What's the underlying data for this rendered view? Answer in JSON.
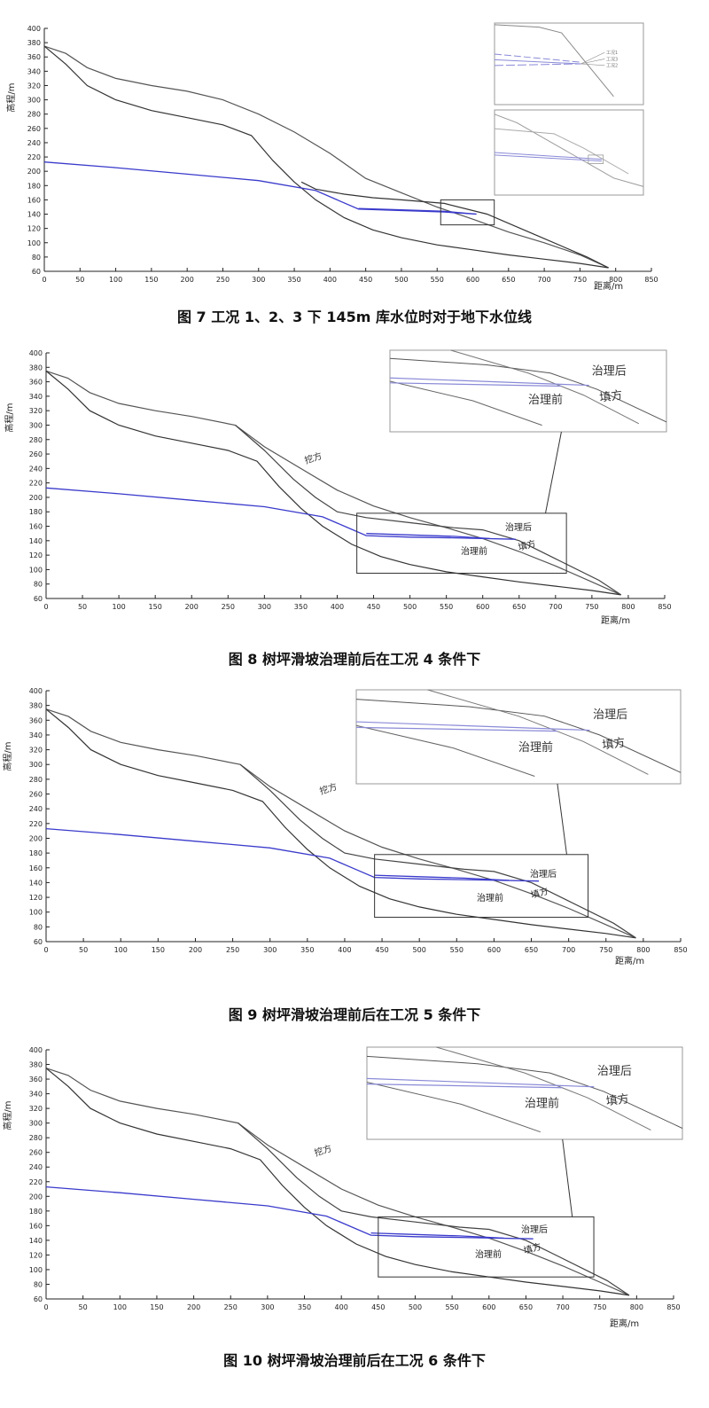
{
  "figures": [
    {
      "caption": "图 7  工况 1、2、3 下 145m 库水位时对于地下水位线",
      "ylabel": "高程/m",
      "xlabel": "距离/m",
      "annotations": {
        "fill": "",
        "after": "",
        "before": "",
        "excavation": ""
      },
      "inset_labels": {
        "after": "",
        "before": "",
        "fill": ""
      },
      "inset_legend": [
        "工况1",
        "工况3",
        "工况2"
      ]
    },
    {
      "caption": "图 8  树坪滑坡治理前后在工况 4 条件下",
      "ylabel": "高程/m",
      "xlabel": "距离/m",
      "annotations": {
        "fill": "填方",
        "after": "治理后",
        "before": "治理前",
        "excavation": "挖方"
      },
      "inset_labels": {
        "after": "治理后",
        "before": "治理前",
        "fill": "填方"
      },
      "inset_legend": []
    },
    {
      "caption": "图 9  树坪滑坡治理前后在工况 5 条件下",
      "ylabel": "高程/m",
      "xlabel": "距离/m",
      "annotations": {
        "fill": "填方",
        "after": "治理后",
        "before": "治理前",
        "excavation": "挖方"
      },
      "inset_labels": {
        "after": "治理后",
        "before": "治理前",
        "fill": "填方"
      },
      "inset_legend": []
    },
    {
      "caption": "图 10  树坪滑坡治理前后在工况 6 条件下",
      "ylabel": "高程/m",
      "xlabel": "距离/m",
      "annotations": {
        "fill": "填方",
        "after": "治理后",
        "before": "治理前",
        "excavation": "挖方"
      },
      "inset_labels": {
        "after": "治理后",
        "before": "治理前",
        "fill": "填方"
      },
      "inset_legend": []
    }
  ],
  "chart_data": [
    {
      "type": "line",
      "title": "图 7  工况 1、2、3 下 145m 库水位时对于地下水位线",
      "xlabel": "距离/m",
      "ylabel": "高程/m",
      "xlim": [
        0,
        850
      ],
      "ylim": [
        60,
        400
      ],
      "xticks": [
        0,
        50,
        100,
        150,
        200,
        250,
        300,
        350,
        400,
        450,
        500,
        550,
        600,
        650,
        700,
        750,
        800,
        850
      ],
      "yticks": [
        60,
        80,
        100,
        120,
        140,
        160,
        180,
        200,
        220,
        240,
        260,
        280,
        300,
        320,
        340,
        360,
        380,
        400
      ],
      "grid": false,
      "series": [
        {
          "role": "ground",
          "color": "#555555",
          "x": [
            0,
            30,
            60,
            100,
            150,
            200,
            250,
            300,
            350,
            400,
            450,
            500,
            550,
            600,
            650,
            700,
            750,
            790
          ],
          "y": [
            375,
            365,
            345,
            330,
            320,
            312,
            300,
            280,
            255,
            225,
            190,
            170,
            150,
            133,
            115,
            100,
            83,
            65
          ]
        },
        {
          "role": "slip surface",
          "color": "#333333",
          "x": [
            0,
            30,
            60,
            100,
            150,
            200,
            250,
            290,
            320,
            350,
            380,
            420,
            460,
            500,
            550,
            600,
            650,
            700,
            750,
            790
          ],
          "y": [
            375,
            350,
            320,
            300,
            285,
            275,
            265,
            250,
            215,
            185,
            160,
            135,
            118,
            107,
            97,
            90,
            83,
            77,
            71,
            65
          ]
        },
        {
          "role": "upper surface",
          "color": "#333333",
          "x": [
            360,
            380,
            420,
            460,
            500,
            560,
            620,
            690,
            760,
            790
          ],
          "y": [
            185,
            175,
            168,
            163,
            160,
            155,
            140,
            110,
            80,
            65
          ]
        },
        {
          "role": "groundwater",
          "color": "#3a3acc",
          "x": [
            0,
            100,
            200,
            300,
            380,
            410,
            440,
            500,
            560,
            605
          ],
          "y": [
            213,
            205,
            196,
            187,
            173,
            160,
            147,
            145,
            143,
            140
          ]
        },
        {
          "role": "groundwater",
          "color": "#3a3acc",
          "x": [
            440,
            500,
            560,
            605
          ],
          "y": [
            148,
            146,
            144,
            140
          ]
        }
      ]
    },
    {
      "type": "line",
      "title": "图 8  树坪滑坡治理前后在工况 4 条件下",
      "xlabel": "距离/m",
      "ylabel": "高程/m",
      "xlim": [
        0,
        850
      ],
      "ylim": [
        60,
        400
      ],
      "xticks": [
        0,
        50,
        100,
        150,
        200,
        250,
        300,
        350,
        400,
        450,
        500,
        550,
        600,
        650,
        700,
        750,
        800,
        850
      ],
      "yticks": [
        60,
        80,
        100,
        120,
        140,
        160,
        180,
        200,
        220,
        240,
        260,
        280,
        300,
        320,
        340,
        360,
        380,
        400
      ],
      "grid": false,
      "annotations": [
        "挖方",
        "治理后",
        "治理前",
        "填方"
      ],
      "series": [
        {
          "role": "ground",
          "color": "#555555",
          "x": [
            0,
            30,
            60,
            100,
            150,
            200,
            260,
            300,
            350,
            400,
            450,
            500,
            550,
            600,
            650,
            700,
            750,
            790
          ],
          "y": [
            375,
            365,
            345,
            330,
            320,
            312,
            300,
            270,
            240,
            210,
            188,
            172,
            158,
            143,
            125,
            105,
            83,
            65
          ]
        },
        {
          "role": "slip surface",
          "color": "#333333",
          "x": [
            0,
            30,
            60,
            100,
            150,
            200,
            250,
            290,
            320,
            350,
            380,
            420,
            460,
            500,
            550,
            600,
            650,
            700,
            750,
            790
          ],
          "y": [
            375,
            350,
            320,
            300,
            285,
            275,
            265,
            250,
            215,
            185,
            160,
            135,
            118,
            107,
            97,
            90,
            83,
            77,
            71,
            65
          ]
        },
        {
          "role": "after treatment",
          "color": "#444444",
          "x": [
            260,
            300,
            340,
            370,
            400,
            440,
            500,
            560,
            600,
            650,
            700,
            760,
            790
          ],
          "y": [
            300,
            265,
            225,
            200,
            180,
            172,
            165,
            158,
            155,
            140,
            115,
            85,
            65
          ]
        },
        {
          "role": "groundwater",
          "color": "#3a3acc",
          "x": [
            0,
            100,
            200,
            300,
            380,
            410,
            440,
            500,
            560,
            645
          ],
          "y": [
            213,
            205,
            196,
            187,
            173,
            160,
            147,
            145,
            144,
            142
          ]
        },
        {
          "role": "groundwater",
          "color": "#3a3acc",
          "x": [
            440,
            500,
            560,
            610
          ],
          "y": [
            150,
            148,
            146,
            143
          ]
        }
      ]
    },
    {
      "type": "line",
      "title": "图 9  树坪滑坡治理前后在工况 5 条件下",
      "xlabel": "距离/m",
      "ylabel": "高程/m",
      "xlim": [
        0,
        850
      ],
      "ylim": [
        60,
        400
      ],
      "xticks": [
        0,
        50,
        100,
        150,
        200,
        250,
        300,
        350,
        400,
        450,
        500,
        550,
        600,
        650,
        700,
        750,
        800,
        850
      ],
      "yticks": [
        60,
        80,
        100,
        120,
        140,
        160,
        180,
        200,
        220,
        240,
        260,
        280,
        300,
        320,
        340,
        360,
        380,
        400
      ],
      "grid": false,
      "annotations": [
        "挖方",
        "治理后",
        "治理前",
        "填方"
      ],
      "series": [
        {
          "role": "ground",
          "color": "#555555",
          "x": [
            0,
            30,
            60,
            100,
            150,
            200,
            260,
            300,
            350,
            400,
            450,
            500,
            550,
            600,
            650,
            700,
            750,
            790
          ],
          "y": [
            375,
            365,
            345,
            330,
            320,
            312,
            300,
            270,
            240,
            210,
            188,
            172,
            158,
            143,
            125,
            105,
            83,
            65
          ]
        },
        {
          "role": "slip surface",
          "color": "#333333",
          "x": [
            0,
            30,
            60,
            100,
            150,
            200,
            250,
            290,
            320,
            350,
            380,
            420,
            460,
            500,
            550,
            600,
            650,
            700,
            750,
            790
          ],
          "y": [
            375,
            350,
            320,
            300,
            285,
            275,
            265,
            250,
            215,
            185,
            160,
            135,
            118,
            107,
            97,
            90,
            83,
            77,
            71,
            65
          ]
        },
        {
          "role": "after treatment",
          "color": "#444444",
          "x": [
            260,
            300,
            340,
            370,
            400,
            440,
            500,
            560,
            600,
            650,
            700,
            760,
            790
          ],
          "y": [
            300,
            265,
            225,
            200,
            180,
            172,
            165,
            158,
            155,
            140,
            115,
            85,
            65
          ]
        },
        {
          "role": "groundwater",
          "color": "#3a3acc",
          "x": [
            0,
            100,
            200,
            300,
            380,
            410,
            440,
            500,
            560,
            660
          ],
          "y": [
            213,
            205,
            196,
            187,
            173,
            160,
            147,
            145,
            144,
            142
          ]
        },
        {
          "role": "groundwater",
          "color": "#3a3acc",
          "x": [
            440,
            500,
            560,
            620
          ],
          "y": [
            150,
            148,
            146,
            143
          ]
        }
      ]
    },
    {
      "type": "line",
      "title": "图 10  树坪滑坡治理前后在工况 6 条件下",
      "xlabel": "距离/m",
      "ylabel": "高程/m",
      "xlim": [
        0,
        850
      ],
      "ylim": [
        60,
        400
      ],
      "xticks": [
        0,
        50,
        100,
        150,
        200,
        250,
        300,
        350,
        400,
        450,
        500,
        550,
        600,
        650,
        700,
        750,
        800,
        850
      ],
      "yticks": [
        60,
        80,
        100,
        120,
        140,
        160,
        180,
        200,
        220,
        240,
        260,
        280,
        300,
        320,
        340,
        360,
        380,
        400
      ],
      "grid": false,
      "annotations": [
        "挖方",
        "治理后",
        "治理前",
        "填方"
      ],
      "series": [
        {
          "role": "ground",
          "color": "#555555",
          "x": [
            0,
            30,
            60,
            100,
            150,
            200,
            260,
            300,
            350,
            400,
            450,
            500,
            550,
            600,
            650,
            700,
            750,
            790
          ],
          "y": [
            375,
            365,
            345,
            330,
            320,
            312,
            300,
            270,
            240,
            210,
            188,
            172,
            158,
            143,
            125,
            105,
            83,
            65
          ]
        },
        {
          "role": "slip surface",
          "color": "#333333",
          "x": [
            0,
            30,
            60,
            100,
            150,
            200,
            250,
            290,
            320,
            350,
            380,
            420,
            460,
            500,
            550,
            600,
            650,
            700,
            750,
            790
          ],
          "y": [
            375,
            350,
            320,
            300,
            285,
            275,
            265,
            250,
            215,
            185,
            160,
            135,
            118,
            107,
            97,
            90,
            83,
            77,
            71,
            65
          ]
        },
        {
          "role": "after treatment",
          "color": "#444444",
          "x": [
            260,
            300,
            340,
            370,
            400,
            440,
            500,
            560,
            600,
            650,
            700,
            760,
            790
          ],
          "y": [
            300,
            265,
            225,
            200,
            180,
            172,
            165,
            158,
            155,
            140,
            115,
            85,
            65
          ]
        },
        {
          "role": "groundwater",
          "color": "#3a3acc",
          "x": [
            0,
            100,
            200,
            300,
            380,
            410,
            440,
            500,
            560,
            660
          ],
          "y": [
            213,
            205,
            196,
            187,
            173,
            160,
            147,
            145,
            144,
            142
          ]
        },
        {
          "role": "groundwater",
          "color": "#3a3acc",
          "x": [
            440,
            500,
            560,
            620
          ],
          "y": [
            150,
            148,
            146,
            143
          ]
        }
      ]
    }
  ]
}
